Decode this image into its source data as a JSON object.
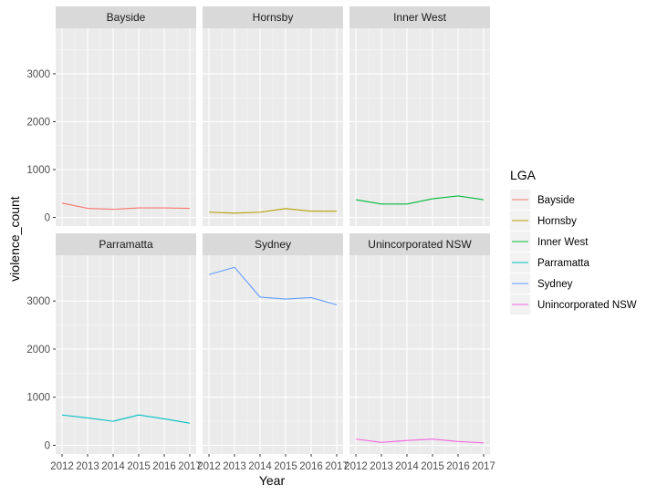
{
  "chart_data": {
    "type": "line",
    "facet_layout": "2x3",
    "xlabel": "Year",
    "ylabel": "violence_count",
    "x": [
      2012,
      2013,
      2014,
      2015,
      2016,
      2017
    ],
    "x_ticks": [
      "2012",
      "2013",
      "2014",
      "2015",
      "2016",
      "2017"
    ],
    "y_ticks": [
      0,
      1000,
      2000,
      3000
    ],
    "y_tick_labels": [
      "0",
      "1000",
      "2000",
      "3000"
    ],
    "xlim": [
      2011.75,
      2017.25
    ],
    "ylim": [
      -180,
      3950
    ],
    "grid": true,
    "legend_title": "LGA",
    "legend_position": "right",
    "series": [
      {
        "name": "Bayside",
        "color": "#F8766D",
        "values": [
          300,
          190,
          170,
          200,
          200,
          190
        ]
      },
      {
        "name": "Hornsby",
        "color": "#B79F00",
        "values": [
          110,
          90,
          110,
          185,
          130,
          130
        ]
      },
      {
        "name": "Inner West",
        "color": "#00BA38",
        "values": [
          370,
          280,
          280,
          390,
          450,
          370
        ]
      },
      {
        "name": "Parramatta",
        "color": "#00BFC4",
        "values": [
          630,
          570,
          500,
          630,
          550,
          460
        ]
      },
      {
        "name": "Sydney",
        "color": "#619CFF",
        "values": [
          3550,
          3700,
          3080,
          3040,
          3070,
          2920
        ]
      },
      {
        "name": "Unincorporated NSW",
        "color": "#F564E3",
        "values": [
          130,
          60,
          100,
          130,
          80,
          50
        ]
      }
    ]
  }
}
